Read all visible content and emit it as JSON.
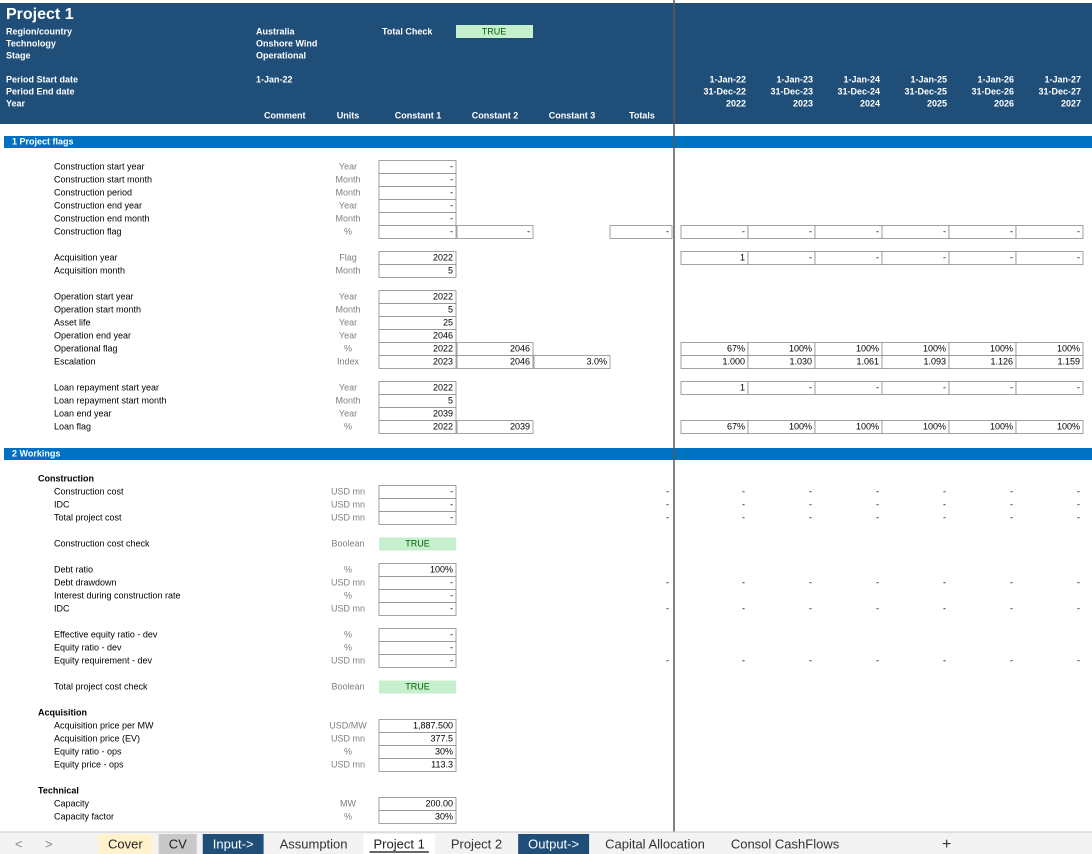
{
  "header": {
    "title": "Project 1",
    "fields": [
      {
        "label": "Region/country",
        "value": "Australia"
      },
      {
        "label": "Technology",
        "value": "Onshore Wind"
      },
      {
        "label": "Stage",
        "value": "Operational"
      }
    ],
    "total_check": {
      "label": "Total Check",
      "value": "TRUE"
    },
    "period_fields": [
      {
        "label": "Period Start date",
        "value": "1-Jan-22"
      },
      {
        "label": "Period End date"
      },
      {
        "label": "Year"
      }
    ],
    "timeline": {
      "start": [
        "1-Jan-22",
        "1-Jan-23",
        "1-Jan-24",
        "1-Jan-25",
        "1-Jan-26",
        "1-Jan-27"
      ],
      "end": [
        "31-Dec-22",
        "31-Dec-23",
        "31-Dec-24",
        "31-Dec-25",
        "31-Dec-26",
        "31-Dec-27"
      ],
      "year": [
        "2022",
        "2023",
        "2024",
        "2025",
        "2026",
        "2027"
      ]
    }
  },
  "columns": {
    "comment": "Comment",
    "units": "Units",
    "c1": "Constant 1",
    "c2": "Constant 2",
    "c3": "Constant 3",
    "total": "Totals"
  },
  "sections": [
    {
      "title": "1 Project flags",
      "boxed_columns": [
        "c1",
        "c2",
        "c3",
        "total",
        "t"
      ],
      "groups": [
        {
          "rows": [
            {
              "label": "Construction start year",
              "units": "Year",
              "c1": "-"
            },
            {
              "label": "Construction start month",
              "units": "Month",
              "c1": "-"
            },
            {
              "label": "Construction period",
              "units": "Month",
              "c1": "-"
            },
            {
              "label": "Construction end year",
              "units": "Year",
              "c1": "-"
            },
            {
              "label": "Construction end month",
              "units": "Month",
              "c1": "-"
            },
            {
              "label": "Construction flag",
              "units": "%",
              "c1": "-",
              "c2": "-",
              "total": "-",
              "t": [
                "-",
                "-",
                "-",
                "-",
                "-",
                "-"
              ]
            }
          ]
        },
        {
          "rows": [
            {
              "label": "Acquisition year",
              "units": "Flag",
              "c1": "2022",
              "t": [
                "1",
                "-",
                "-",
                "-",
                "-",
                "-"
              ]
            },
            {
              "label": "Acquisition month",
              "units": "Month",
              "c1": "5"
            }
          ]
        },
        {
          "rows": [
            {
              "label": "Operation start year",
              "units": "Year",
              "c1": "2022"
            },
            {
              "label": "Operation start month",
              "units": "Month",
              "c1": "5"
            },
            {
              "label": "Asset life",
              "units": "Year",
              "c1": "25"
            },
            {
              "label": "Operation end year",
              "units": "Year",
              "c1": "2046"
            },
            {
              "label": "Operational flag",
              "units": "%",
              "c1": "2022",
              "c2": "2046",
              "t": [
                "67%",
                "100%",
                "100%",
                "100%",
                "100%",
                "100%"
              ]
            },
            {
              "label": "Escalation",
              "units": "Index",
              "c1": "2023",
              "c2": "2046",
              "c3": "3.0%",
              "t": [
                "1.000",
                "1.030",
                "1.061",
                "1.093",
                "1.126",
                "1.159"
              ]
            }
          ]
        },
        {
          "rows": [
            {
              "label": "Loan repayment start year",
              "units": "Year",
              "c1": "2022",
              "t": [
                "1",
                "-",
                "-",
                "-",
                "-",
                "-"
              ]
            },
            {
              "label": "Loan repayment start month",
              "units": "Month",
              "c1": "5"
            },
            {
              "label": "Loan end year",
              "units": "Year",
              "c1": "2039"
            },
            {
              "label": "Loan flag",
              "units": "%",
              "c1": "2022",
              "c2": "2039",
              "t": [
                "67%",
                "100%",
                "100%",
                "100%",
                "100%",
                "100%"
              ]
            }
          ]
        }
      ]
    },
    {
      "title": "2 Workings",
      "boxed_columns": [
        "c1"
      ],
      "groups": [
        {
          "heading": "Construction",
          "rows": [
            {
              "label": "Construction cost",
              "units": "USD mn",
              "c1": "-",
              "total": "-",
              "t": [
                "-",
                "-",
                "-",
                "-",
                "-",
                "-"
              ]
            },
            {
              "label": "IDC",
              "units": "USD mn",
              "c1": "-",
              "total": "-",
              "t": [
                "-",
                "-",
                "-",
                "-",
                "-",
                "-"
              ]
            },
            {
              "label": "Total project cost",
              "units": "USD mn",
              "c1": "-",
              "total": "-",
              "t": [
                "-",
                "-",
                "-",
                "-",
                "-",
                "-"
              ]
            }
          ]
        },
        {
          "rows": [
            {
              "label": "Construction cost check",
              "units": "Boolean",
              "c1": "TRUE",
              "highlight": true
            }
          ]
        },
        {
          "rows": [
            {
              "label": "Debt ratio",
              "units": "%",
              "c1": "100%"
            },
            {
              "label": "Debt drawdown",
              "units": "USD mn",
              "c1": "-",
              "total": "-",
              "t": [
                "-",
                "-",
                "-",
                "-",
                "-",
                "-"
              ]
            },
            {
              "label": "Interest during construction rate",
              "units": "%",
              "c1": "-"
            },
            {
              "label": "IDC",
              "units": "USD mn",
              "c1": "-",
              "total": "-",
              "t": [
                "-",
                "-",
                "-",
                "-",
                "-",
                "-"
              ]
            }
          ]
        },
        {
          "rows": [
            {
              "label": "Effective equity ratio - dev",
              "units": "%",
              "c1": "-"
            },
            {
              "label": "Equity ratio - dev",
              "units": "%",
              "c1": "-"
            },
            {
              "label": "Equity requirement - dev",
              "units": "USD mn",
              "c1": "-",
              "total": "-",
              "t": [
                "-",
                "-",
                "-",
                "-",
                "-",
                "-"
              ]
            }
          ]
        },
        {
          "rows": [
            {
              "label": "Total project cost check",
              "units": "Boolean",
              "c1": "TRUE",
              "highlight": true
            }
          ]
        },
        {
          "heading": "Acquisition",
          "rows": [
            {
              "label": "Acquisition price per MW",
              "units": "USD/MW",
              "c1": "1,887.500"
            },
            {
              "label": "Acquisition price (EV)",
              "units": "USD mn",
              "c1": "377.5"
            },
            {
              "label": "Equity ratio - ops",
              "units": "%",
              "c1": "30%"
            },
            {
              "label": "Equity price - ops",
              "units": "USD mn",
              "c1": "113.3"
            }
          ]
        },
        {
          "heading": "Technical",
          "rows": [
            {
              "label": "Capacity",
              "units": "MW",
              "c1": "200.00"
            },
            {
              "label": "Capacity factor",
              "units": "%",
              "c1": "30%"
            }
          ]
        }
      ]
    }
  ],
  "tabs": [
    {
      "name": "Cover",
      "style": "yellow"
    },
    {
      "name": "CV",
      "style": "gray"
    },
    {
      "name": "Input->",
      "style": "blue"
    },
    {
      "name": "Assumption",
      "style": "plain"
    },
    {
      "name": "Project 1",
      "style": "active"
    },
    {
      "name": "Project 2",
      "style": "plain"
    },
    {
      "name": "Output->",
      "style": "blue"
    },
    {
      "name": "Capital Allocation",
      "style": "plain"
    },
    {
      "name": "Consol CashFlows",
      "style": "plain"
    }
  ]
}
